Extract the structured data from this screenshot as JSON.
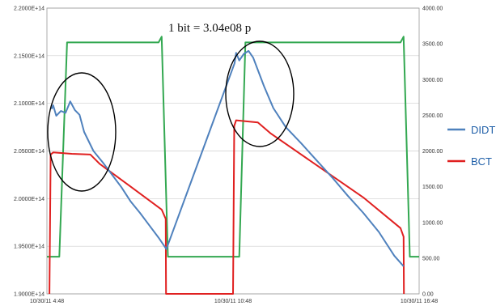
{
  "chart_data": {
    "type": "line",
    "title": "",
    "annotation": "1 bit = 3.04e08 p",
    "grid": true,
    "legend_position": "right",
    "x_ticks": [
      "10/30/11 4:48",
      "10/30/11 10:48",
      "10/30/11 16:48"
    ],
    "x_range_hours": [
      4.8,
      16.8
    ],
    "y_left": {
      "range": [
        190000000000000.0,
        220000000000000.0
      ],
      "ticks": [
        "1.9000E+14",
        "1.9500E+14",
        "2.0000E+14",
        "2.0500E+14",
        "2.1000E+14",
        "2.1500E+14",
        "2.2000E+14"
      ]
    },
    "y_right": {
      "range": [
        0,
        4000
      ],
      "ticks": [
        "0.00",
        "500.00",
        "1000.00",
        "1500.00",
        "2000.00",
        "2500.00",
        "3000.00",
        "3500.00",
        "4000.00"
      ]
    },
    "series": [
      {
        "name": "DIDT",
        "color": "#4f81bd",
        "axis": "left",
        "x": [
          4.95,
          5.0,
          5.1,
          5.25,
          5.4,
          5.55,
          5.7,
          5.85,
          6.0,
          6.3,
          6.6,
          6.9,
          7.2,
          7.5,
          7.8,
          8.1,
          8.4,
          8.65,
          10.85,
          10.9,
          11.0,
          11.15,
          11.3,
          11.45,
          11.6,
          11.8,
          12.1,
          12.5,
          13.0,
          13.5,
          14.0,
          14.5,
          15.0,
          15.5,
          16.0,
          16.3
        ],
        "y": [
          209400000000000.0,
          209800000000000.0,
          208700000000000.0,
          209200000000000.0,
          209000000000000.0,
          210200000000000.0,
          209300000000000.0,
          208800000000000.0,
          207000000000000.0,
          205000000000000.0,
          203800000000000.0,
          202500000000000.0,
          201200000000000.0,
          199700000000000.0,
          198500000000000.0,
          197200000000000.0,
          195900000000000.0,
          194700000000000.0,
          214200000000000.0,
          215300000000000.0,
          214500000000000.0,
          215200000000000.0,
          215500000000000.0,
          214800000000000.0,
          213500000000000.0,
          211800000000000.0,
          209500000000000.0,
          207500000000000.0,
          205800000000000.0,
          204000000000000.0,
          202200000000000.0,
          200300000000000.0,
          198500000000000.0,
          196500000000000.0,
          194000000000000.0,
          192900000000000.0
        ]
      },
      {
        "name": "BCT",
        "color": "#e02020",
        "axis": "right",
        "x": [
          4.88,
          4.92,
          5.0,
          5.6,
          6.2,
          6.5,
          7.5,
          8.5,
          8.63,
          8.64,
          10.8,
          10.84,
          10.9,
          11.6,
          12.0,
          13.5,
          15.0,
          16.2,
          16.3,
          16.31
        ],
        "y": [
          0,
          1950,
          1980,
          1960,
          1950,
          1820,
          1500,
          1180,
          1050,
          0,
          0,
          2350,
          2430,
          2400,
          2250,
          1800,
          1350,
          920,
          800,
          0
        ]
      },
      {
        "name": "",
        "color": "#33a851",
        "axis": "right",
        "x": [
          4.8,
          5.2,
          5.45,
          8.4,
          8.5,
          8.7,
          10.8,
          11.0,
          11.2,
          16.2,
          16.3,
          16.5,
          16.8
        ],
        "y": [
          520,
          520,
          3520,
          3520,
          3600,
          520,
          520,
          520,
          3520,
          3520,
          3600,
          520,
          520
        ]
      }
    ]
  }
}
